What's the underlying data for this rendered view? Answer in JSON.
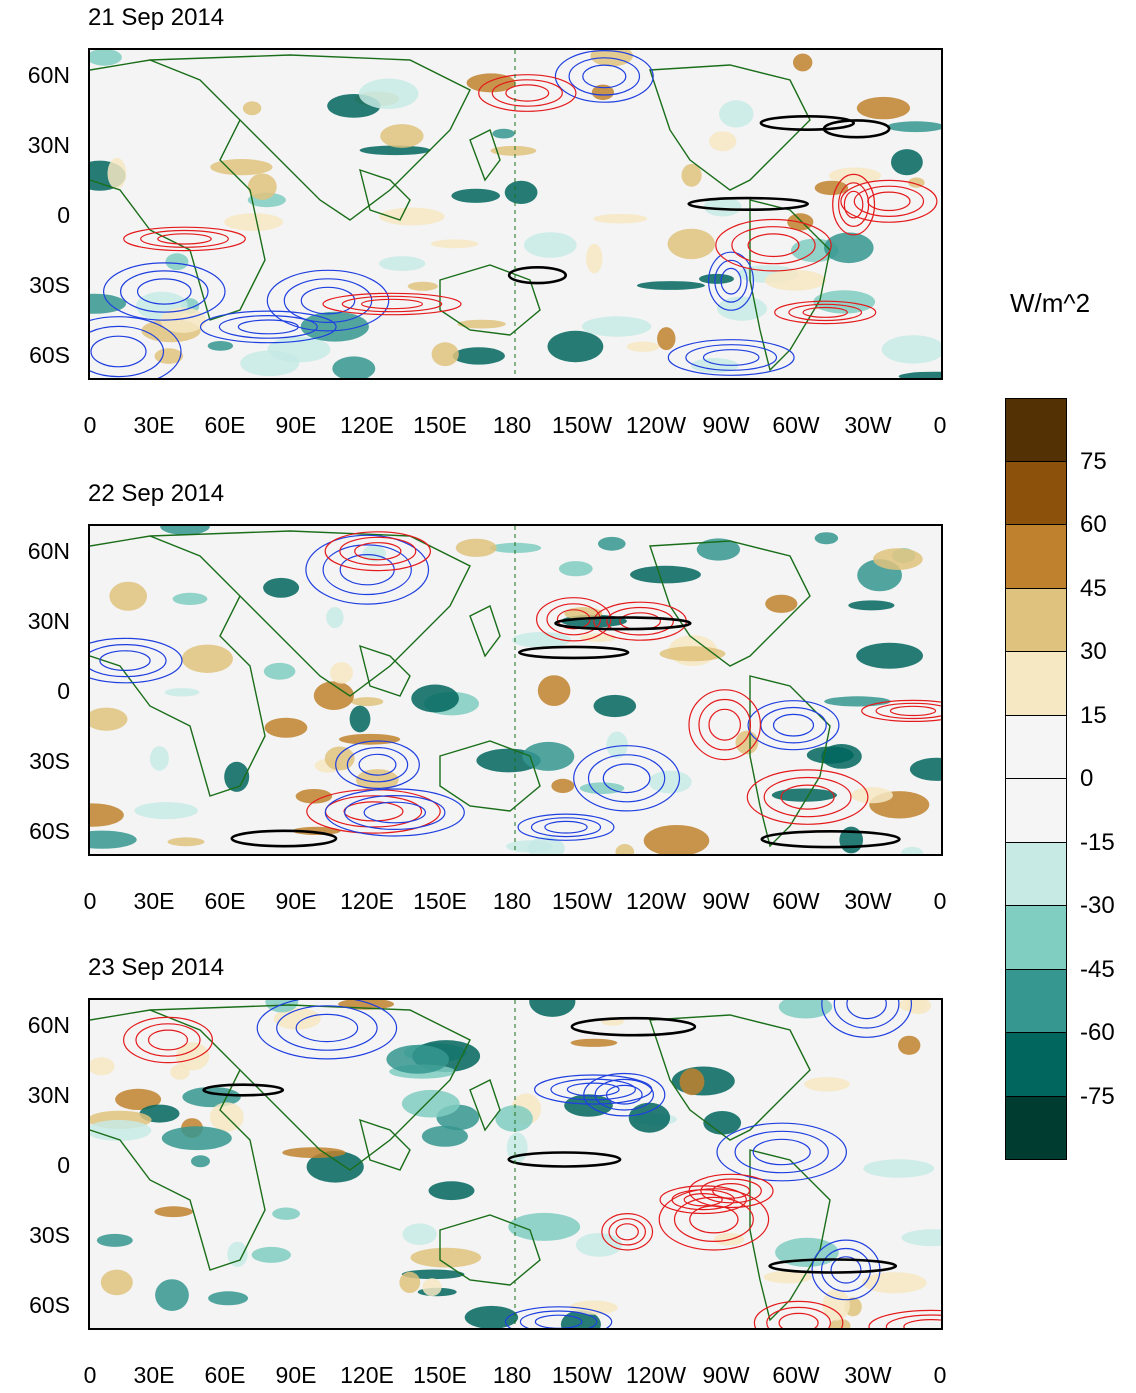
{
  "units": "W/m^2",
  "panels": [
    {
      "title": "21 Sep 2014"
    },
    {
      "title": "22 Sep 2014"
    },
    {
      "title": "23 Sep 2014"
    }
  ],
  "lat_labels": [
    "60N",
    "30N",
    "0",
    "30S",
    "60S"
  ],
  "lon_labels": [
    "0",
    "30E",
    "60E",
    "90E",
    "120E",
    "150E",
    "180",
    "150W",
    "120W",
    "90W",
    "60W",
    "30W",
    "0"
  ],
  "colorbar": {
    "labels": [
      "75",
      "60",
      "45",
      "30",
      "15",
      "0",
      "-15",
      "-30",
      "-45",
      "-60",
      "-75"
    ],
    "colors": [
      "#543005",
      "#8c510a",
      "#bf812d",
      "#dfc27d",
      "#f6e8c3",
      "#f5f5f5",
      "#f5f5f5",
      "#c7eae5",
      "#80cdc1",
      "#35978f",
      "#01665e",
      "#003c30"
    ]
  },
  "contour_colors": {
    "positive": "#e41a1c",
    "negative": "#1f3fe0",
    "threshold": "#000000",
    "coast": "#1a6e1a"
  }
}
